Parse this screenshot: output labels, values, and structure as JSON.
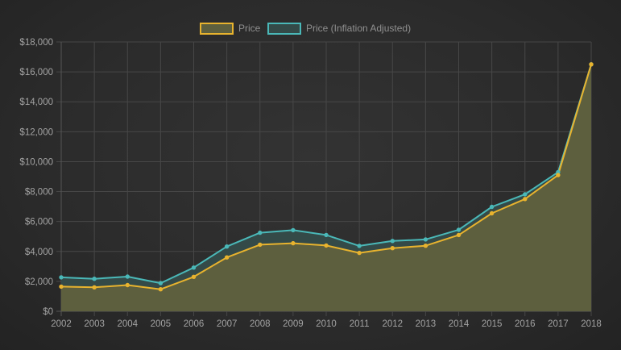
{
  "chart_data": {
    "type": "area",
    "title": "",
    "xlabel": "",
    "ylabel": "",
    "categories": [
      "2002",
      "2003",
      "2004",
      "2005",
      "2006",
      "2007",
      "2008",
      "2009",
      "2010",
      "2011",
      "2012",
      "2013",
      "2014",
      "2015",
      "2016",
      "2017",
      "2018"
    ],
    "y_ticks": [
      "$0",
      "$2,000",
      "$4,000",
      "$6,000",
      "$8,000",
      "$10,000",
      "$12,000",
      "$14,000",
      "$16,000",
      "$18,000"
    ],
    "ylim": [
      0,
      18000
    ],
    "grid": true,
    "legend_position": "top-center",
    "series": [
      {
        "name": "Price",
        "color": "#e8b32e",
        "fill": "#5d5f3e",
        "values": [
          1650,
          1600,
          1750,
          1470,
          2300,
          3600,
          4450,
          4550,
          4400,
          3900,
          4220,
          4380,
          5100,
          6550,
          7500,
          9100,
          16500
        ]
      },
      {
        "name": "Price (Inflation Adjusted)",
        "color": "#4ab8b8",
        "fill": "#344a48",
        "values": [
          2270,
          2170,
          2320,
          1880,
          2920,
          4330,
          5250,
          5420,
          5100,
          4370,
          4700,
          4800,
          5450,
          6980,
          7820,
          9300,
          16500
        ]
      }
    ]
  }
}
